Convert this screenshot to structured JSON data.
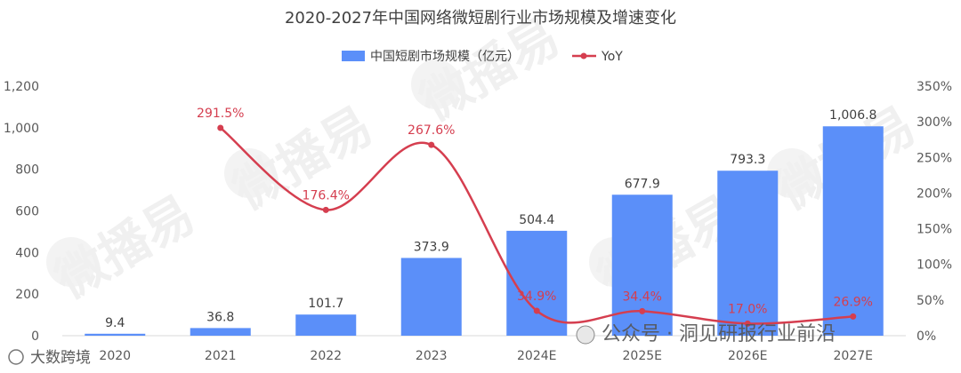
{
  "chart_data": {
    "type": "bar",
    "title": "2020-2027年中国网络微短剧行业市场规模及增速变化",
    "categories": [
      "2020",
      "2021",
      "2022",
      "2023",
      "2024E",
      "2025E",
      "2026E",
      "2027E"
    ],
    "series": [
      {
        "name": "中国短剧市场规模（亿元）",
        "type": "bar",
        "axis": "left",
        "color": "#5b8ff9",
        "values": [
          9.4,
          36.8,
          101.7,
          373.9,
          504.4,
          677.9,
          793.3,
          1006.8
        ],
        "labels": [
          "9.4",
          "36.8",
          "101.7",
          "373.9",
          "504.4",
          "677.9",
          "793.3",
          "1,006.8"
        ]
      },
      {
        "name": "YoY",
        "type": "line",
        "axis": "right",
        "color": "#d53e4f",
        "values": [
          null,
          291.5,
          176.4,
          267.6,
          34.9,
          34.4,
          17.0,
          26.9
        ],
        "labels": [
          "",
          "291.5%",
          "176.4%",
          "267.6%",
          "34.9%",
          "34.4%",
          "17.0%",
          "26.9%"
        ]
      }
    ],
    "y_left": {
      "min": 0,
      "max": 1200,
      "step": 200,
      "ticks": [
        "0",
        "200",
        "400",
        "600",
        "800",
        "1,000",
        "1,200"
      ]
    },
    "y_right": {
      "min": 0,
      "max": 350,
      "step": 50,
      "ticks": [
        "0%",
        "50%",
        "100%",
        "150%",
        "200%",
        "250%",
        "300%",
        "350%"
      ]
    },
    "legend_position": "top-center",
    "grid": false
  },
  "watermarks": {
    "logo_text": "微播易",
    "source_bottom_left": "大数跨境",
    "source_bottom_right": "公众号 · 洞见研报行业前沿"
  }
}
